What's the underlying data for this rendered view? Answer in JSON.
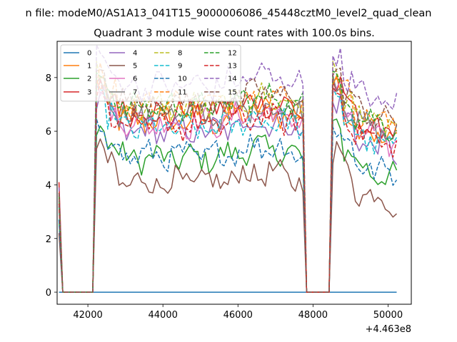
{
  "figure": {
    "suptitle": "n file: modeM0/AS1A13_041T15_9000006086_45448cztM0_level2_quad_clean",
    "title": "Quadrant 3 module wise count rates with 100.0s bins."
  },
  "chart_data": {
    "type": "line",
    "title": "Quadrant 3 module wise count rates with 100.0s bins.",
    "xlabel": "",
    "ylabel": "",
    "x_offset_label": "+4.463e8",
    "xlim": [
      41180,
      50620
    ],
    "ylim": [
      -0.45,
      9.35
    ],
    "x_ticks": [
      42000,
      44000,
      46000,
      48000,
      50000
    ],
    "x_tick_labels": [
      "42000",
      "44000",
      "46000",
      "48000",
      "50000"
    ],
    "y_ticks": [
      0,
      2,
      4,
      6,
      8
    ],
    "y_tick_labels": [
      "0",
      "2",
      "4",
      "6",
      "8"
    ],
    "grid": false,
    "legend": {
      "location": "upper-left",
      "columns": 4
    },
    "time_base": 41230,
    "bin_seconds": 100,
    "segments": [
      {
        "on_start": 42230,
        "on_end": 47730
      },
      {
        "on_start": 48530,
        "on_end": 50230
      }
    ],
    "series": [
      {
        "name": "0",
        "color": "#1f77b4",
        "dash": "solid",
        "level": 0.0,
        "first": 0.0
      },
      {
        "name": "1",
        "color": "#ff7f0e",
        "dash": "solid",
        "level": 6.4,
        "first": 3.2
      },
      {
        "name": "2",
        "color": "#2ca02c",
        "dash": "solid",
        "level": 5.0,
        "first": 2.7
      },
      {
        "name": "3",
        "color": "#d62728",
        "dash": "solid",
        "level": 6.7,
        "first": 4.1
      },
      {
        "name": "4",
        "color": "#9467bd",
        "dash": "solid",
        "level": 6.0,
        "first": 3.4
      },
      {
        "name": "5",
        "color": "#8c564b",
        "dash": "solid",
        "level": 4.1,
        "first": 2.2
      },
      {
        "name": "6",
        "color": "#e377c2",
        "dash": "solid",
        "level": 6.3,
        "first": 3.3
      },
      {
        "name": "7",
        "color": "#7f7f7f",
        "dash": "solid",
        "level": 6.6,
        "first": 3.5
      },
      {
        "name": "8",
        "color": "#bcbd22",
        "dash": "dashed",
        "level": 6.9,
        "first": 3.6
      },
      {
        "name": "9",
        "color": "#17becf",
        "dash": "dashed",
        "level": 6.1,
        "first": 3.2
      },
      {
        "name": "10",
        "color": "#1f77b4",
        "dash": "dashed",
        "level": 5.1,
        "first": 2.7
      },
      {
        "name": "11",
        "color": "#ff7f0e",
        "dash": "dashed",
        "level": 7.0,
        "first": 3.7
      },
      {
        "name": "12",
        "color": "#2ca02c",
        "dash": "dashed",
        "level": 6.9,
        "first": 3.6
      },
      {
        "name": "13",
        "color": "#d62728",
        "dash": "dashed",
        "level": 6.2,
        "first": 3.3
      },
      {
        "name": "14",
        "color": "#9467bd",
        "dash": "dashed",
        "level": 7.7,
        "first": 3.9
      },
      {
        "name": "15",
        "color": "#8c564b",
        "dash": "dashed",
        "level": 7.1,
        "first": 3.7
      }
    ]
  }
}
